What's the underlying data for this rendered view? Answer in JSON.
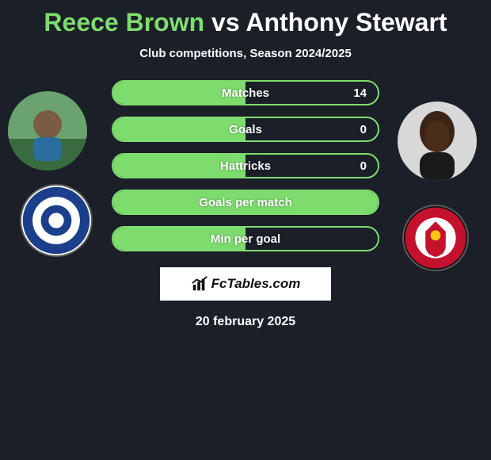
{
  "title": {
    "player1": "Reece Brown",
    "vs": "vs",
    "player2": "Anthony Stewart"
  },
  "subtitle": "Club competitions, Season 2024/2025",
  "colors": {
    "background": "#1a1f28",
    "accent": "#7edc6e",
    "text": "#ffffff",
    "brand_bg": "#ffffff",
    "brand_text": "#111111"
  },
  "bars": [
    {
      "label": "Matches",
      "value": "14",
      "fill_pct": 50
    },
    {
      "label": "Goals",
      "value": "0",
      "fill_pct": 50
    },
    {
      "label": "Hattricks",
      "value": "0",
      "fill_pct": 50
    },
    {
      "label": "Goals per match",
      "value": "",
      "fill_pct": 100
    },
    {
      "label": "Min per goal",
      "value": "",
      "fill_pct": 50
    }
  ],
  "brand": {
    "icon": "bar-chart-icon",
    "text": "FcTables.com"
  },
  "date": "20 february 2025",
  "avatars": {
    "left_player_alt": "Reece Brown photo",
    "right_player_alt": "Anthony Stewart photo",
    "left_club_alt": "Rochdale AFC badge",
    "right_club_alt": "Ebbsfleet United badge"
  }
}
